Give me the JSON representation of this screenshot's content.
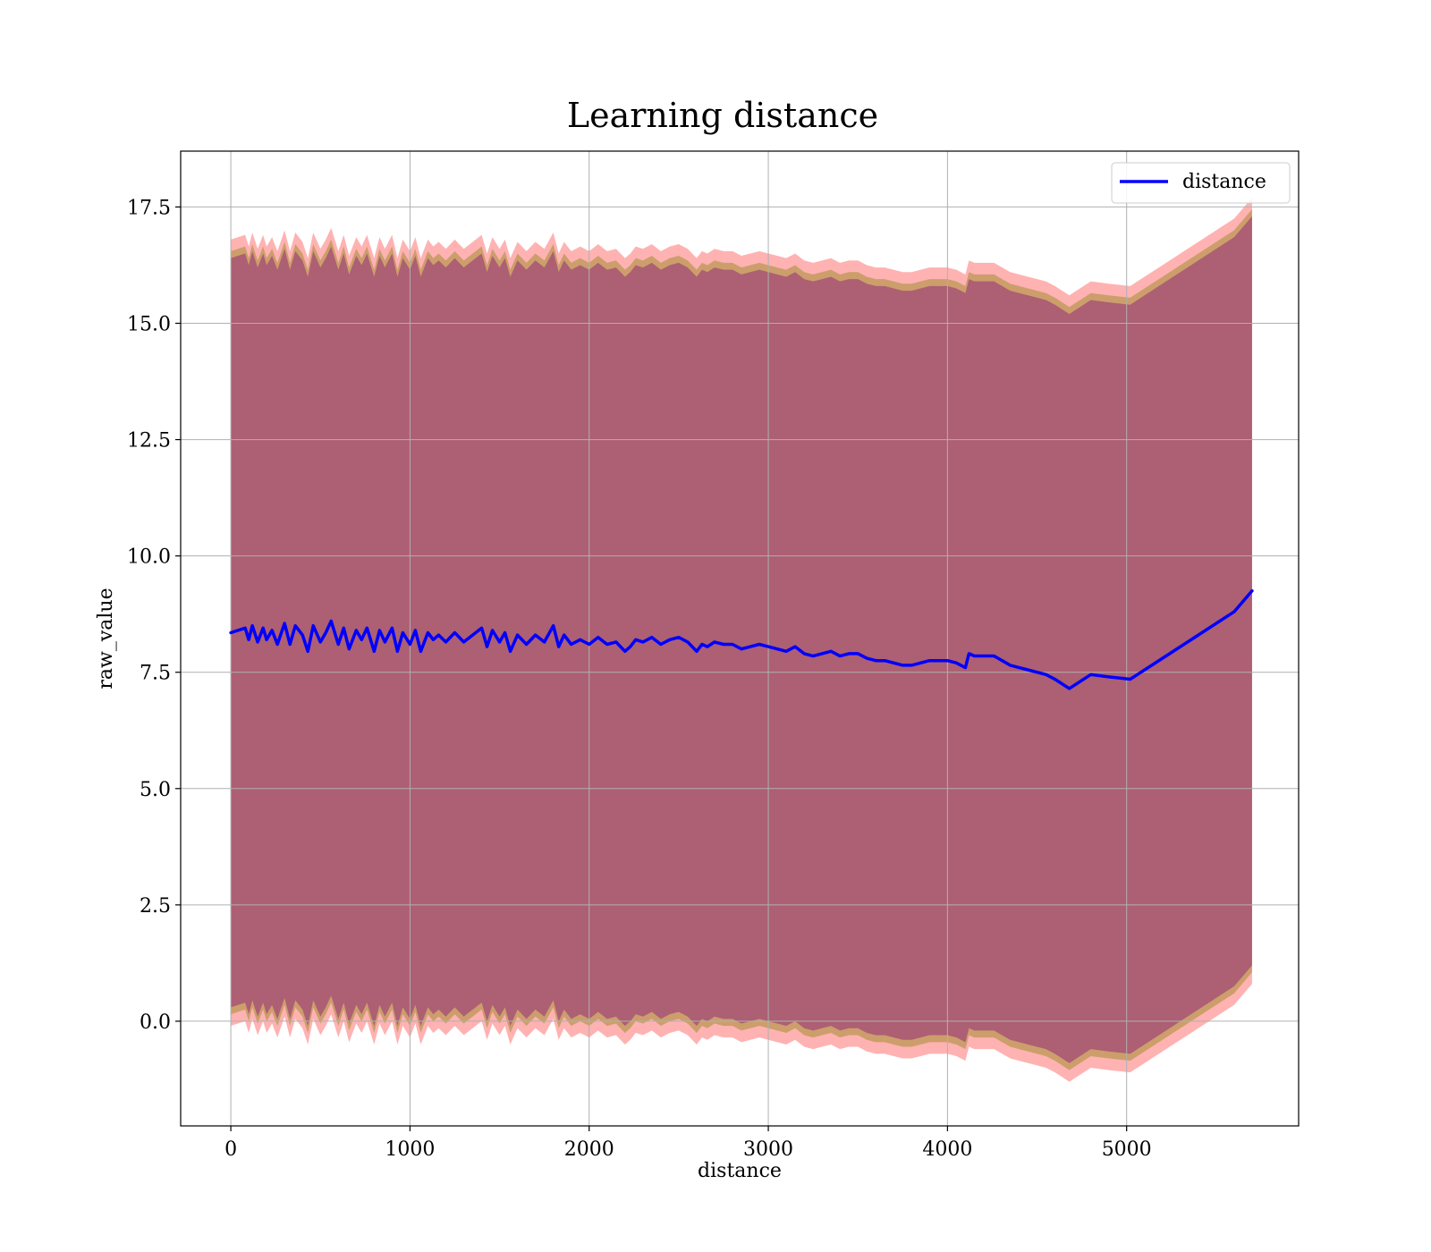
{
  "chart_data": {
    "type": "line",
    "title": "Learning distance",
    "xlabel": "distance",
    "ylabel": "raw_value",
    "xlim": [
      -280,
      5960
    ],
    "ylim": [
      -2.25,
      18.7
    ],
    "x_ticks": [
      0,
      1000,
      2000,
      3000,
      4000,
      5000
    ],
    "x_tick_labels": [
      "0",
      "1000",
      "2000",
      "3000",
      "4000",
      "5000"
    ],
    "y_ticks": [
      0.0,
      2.5,
      5.0,
      7.5,
      10.0,
      12.5,
      15.0,
      17.5
    ],
    "y_tick_labels": [
      "0.0",
      "2.5",
      "5.0",
      "7.5",
      "10.0",
      "12.5",
      "15.0",
      "17.5"
    ],
    "grid": true,
    "legend": {
      "position": "top-right",
      "entries": [
        "distance"
      ]
    },
    "series": [
      {
        "name": "distance",
        "color": "#0000ff",
        "x": [
          0,
          40,
          80,
          100,
          120,
          150,
          180,
          200,
          230,
          260,
          300,
          330,
          360,
          400,
          430,
          460,
          500,
          530,
          560,
          600,
          630,
          660,
          700,
          730,
          760,
          800,
          830,
          860,
          900,
          930,
          960,
          1000,
          1030,
          1060,
          1100,
          1130,
          1160,
          1200,
          1250,
          1300,
          1350,
          1400,
          1430,
          1460,
          1500,
          1530,
          1560,
          1600,
          1650,
          1700,
          1750,
          1800,
          1830,
          1860,
          1900,
          1950,
          2000,
          2050,
          2100,
          2150,
          2200,
          2230,
          2260,
          2300,
          2350,
          2400,
          2450,
          2500,
          2550,
          2600,
          2630,
          2660,
          2700,
          2750,
          2800,
          2850,
          2900,
          2950,
          3000,
          3050,
          3100,
          3150,
          3200,
          3250,
          3300,
          3350,
          3400,
          3450,
          3500,
          3550,
          3600,
          3650,
          3700,
          3750,
          3800,
          3850,
          3900,
          3950,
          4000,
          4050,
          4100,
          4120,
          4150,
          4200,
          4260,
          4350,
          4450,
          4550,
          4600,
          4680,
          4800,
          4900,
          5020,
          5200,
          5400,
          5600,
          5700
        ],
        "y": [
          8.35,
          8.4,
          8.45,
          8.2,
          8.5,
          8.15,
          8.45,
          8.2,
          8.4,
          8.1,
          8.55,
          8.1,
          8.5,
          8.3,
          7.95,
          8.5,
          8.15,
          8.35,
          8.6,
          8.1,
          8.45,
          8.0,
          8.4,
          8.2,
          8.45,
          7.95,
          8.4,
          8.15,
          8.45,
          7.95,
          8.35,
          8.1,
          8.4,
          7.95,
          8.35,
          8.2,
          8.3,
          8.15,
          8.35,
          8.15,
          8.3,
          8.45,
          8.05,
          8.4,
          8.15,
          8.35,
          7.95,
          8.3,
          8.1,
          8.3,
          8.15,
          8.5,
          8.05,
          8.3,
          8.1,
          8.2,
          8.1,
          8.25,
          8.1,
          8.15,
          7.95,
          8.05,
          8.2,
          8.15,
          8.25,
          8.1,
          8.2,
          8.25,
          8.15,
          7.95,
          8.1,
          8.05,
          8.15,
          8.1,
          8.1,
          8.0,
          8.05,
          8.1,
          8.05,
          8.0,
          7.95,
          8.05,
          7.9,
          7.85,
          7.9,
          7.95,
          7.85,
          7.9,
          7.9,
          7.8,
          7.75,
          7.75,
          7.7,
          7.65,
          7.65,
          7.7,
          7.75,
          7.75,
          7.75,
          7.7,
          7.6,
          7.9,
          7.85,
          7.85,
          7.85,
          7.65,
          7.55,
          7.45,
          7.35,
          7.15,
          7.45,
          7.4,
          7.35,
          7.8,
          8.3,
          8.8,
          9.25
        ]
      }
    ],
    "bands": [
      {
        "color": "#ff0000",
        "opacity": 0.3,
        "offset": 8.45
      },
      {
        "color": "#808000",
        "opacity": 0.4,
        "offset": 8.2
      },
      {
        "color": "#800080",
        "opacity": 0.4,
        "offset": 8.05
      }
    ]
  }
}
